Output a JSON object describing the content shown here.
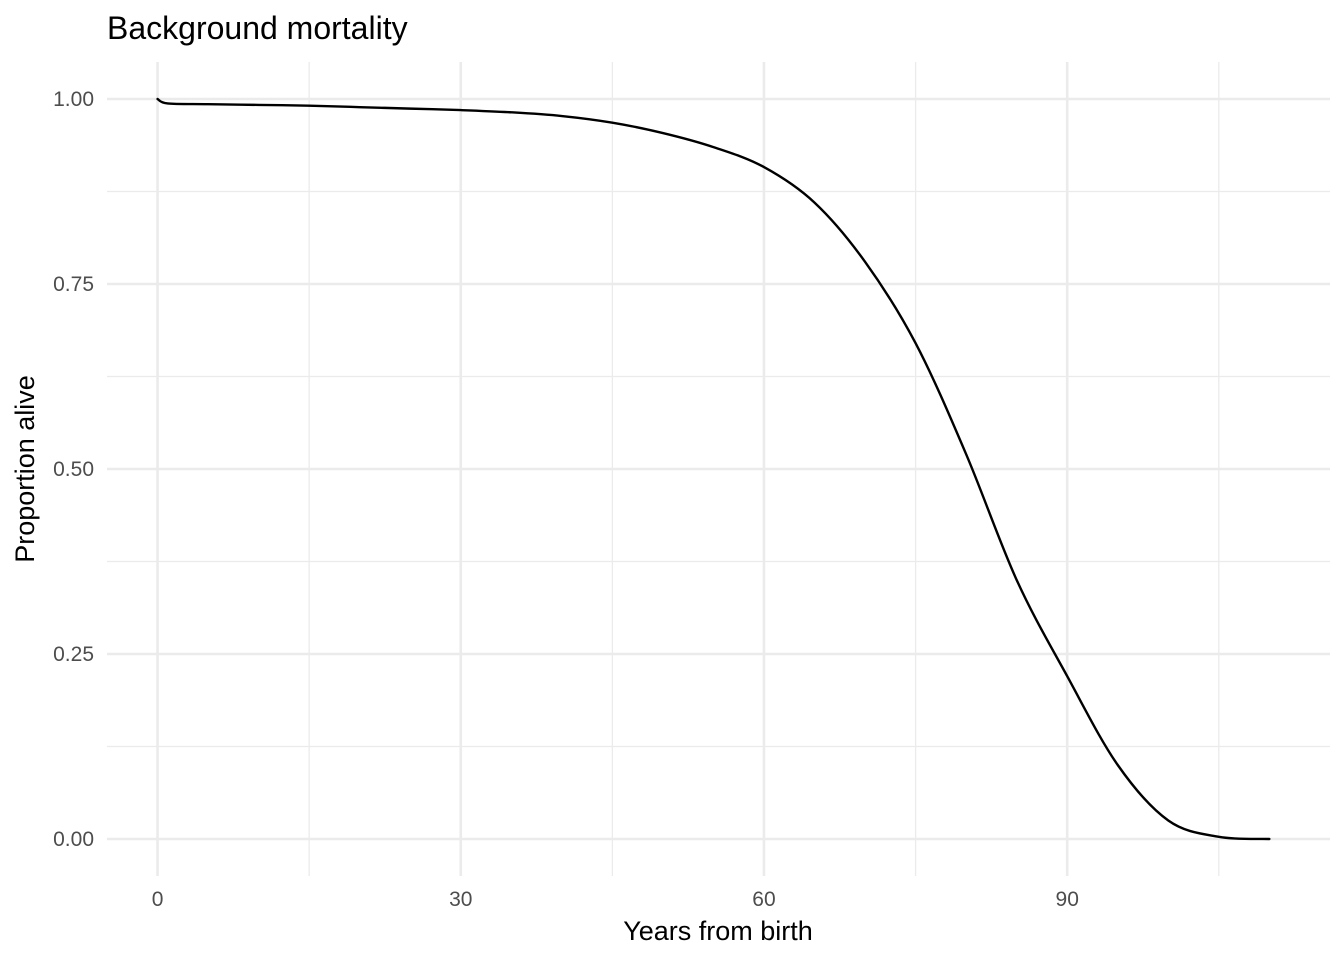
{
  "chart_data": {
    "type": "line",
    "title": "Background mortality",
    "xlabel": "Years from birth",
    "ylabel": "Proportion alive",
    "xlim": [
      -5,
      116
    ],
    "ylim": [
      -0.05,
      1.05
    ],
    "x_ticks": [
      0,
      30,
      60,
      90
    ],
    "x_tick_labels": [
      "0",
      "30",
      "60",
      "90"
    ],
    "x_minor_ticks": [
      15,
      45,
      75,
      105
    ],
    "y_ticks": [
      0,
      0.25,
      0.5,
      0.75,
      1.0
    ],
    "y_tick_labels": [
      "0.00",
      "0.25",
      "0.50",
      "0.75",
      "1.00"
    ],
    "y_minor_ticks": [
      0.125,
      0.375,
      0.625,
      0.875
    ],
    "grid": true,
    "legend": "none",
    "line_color": "#000000",
    "series": [
      {
        "x": [
          0,
          1,
          5,
          10,
          15,
          20,
          25,
          30,
          35,
          40,
          45,
          50,
          55,
          60,
          65,
          70,
          75,
          80,
          85,
          90,
          95,
          100,
          105,
          110
        ],
        "y": [
          1.0,
          0.994,
          0.993,
          0.992,
          0.991,
          0.989,
          0.987,
          0.985,
          0.982,
          0.977,
          0.968,
          0.954,
          0.935,
          0.908,
          0.86,
          0.78,
          0.67,
          0.52,
          0.35,
          0.22,
          0.1,
          0.025,
          0.003,
          0.0
        ]
      }
    ]
  }
}
